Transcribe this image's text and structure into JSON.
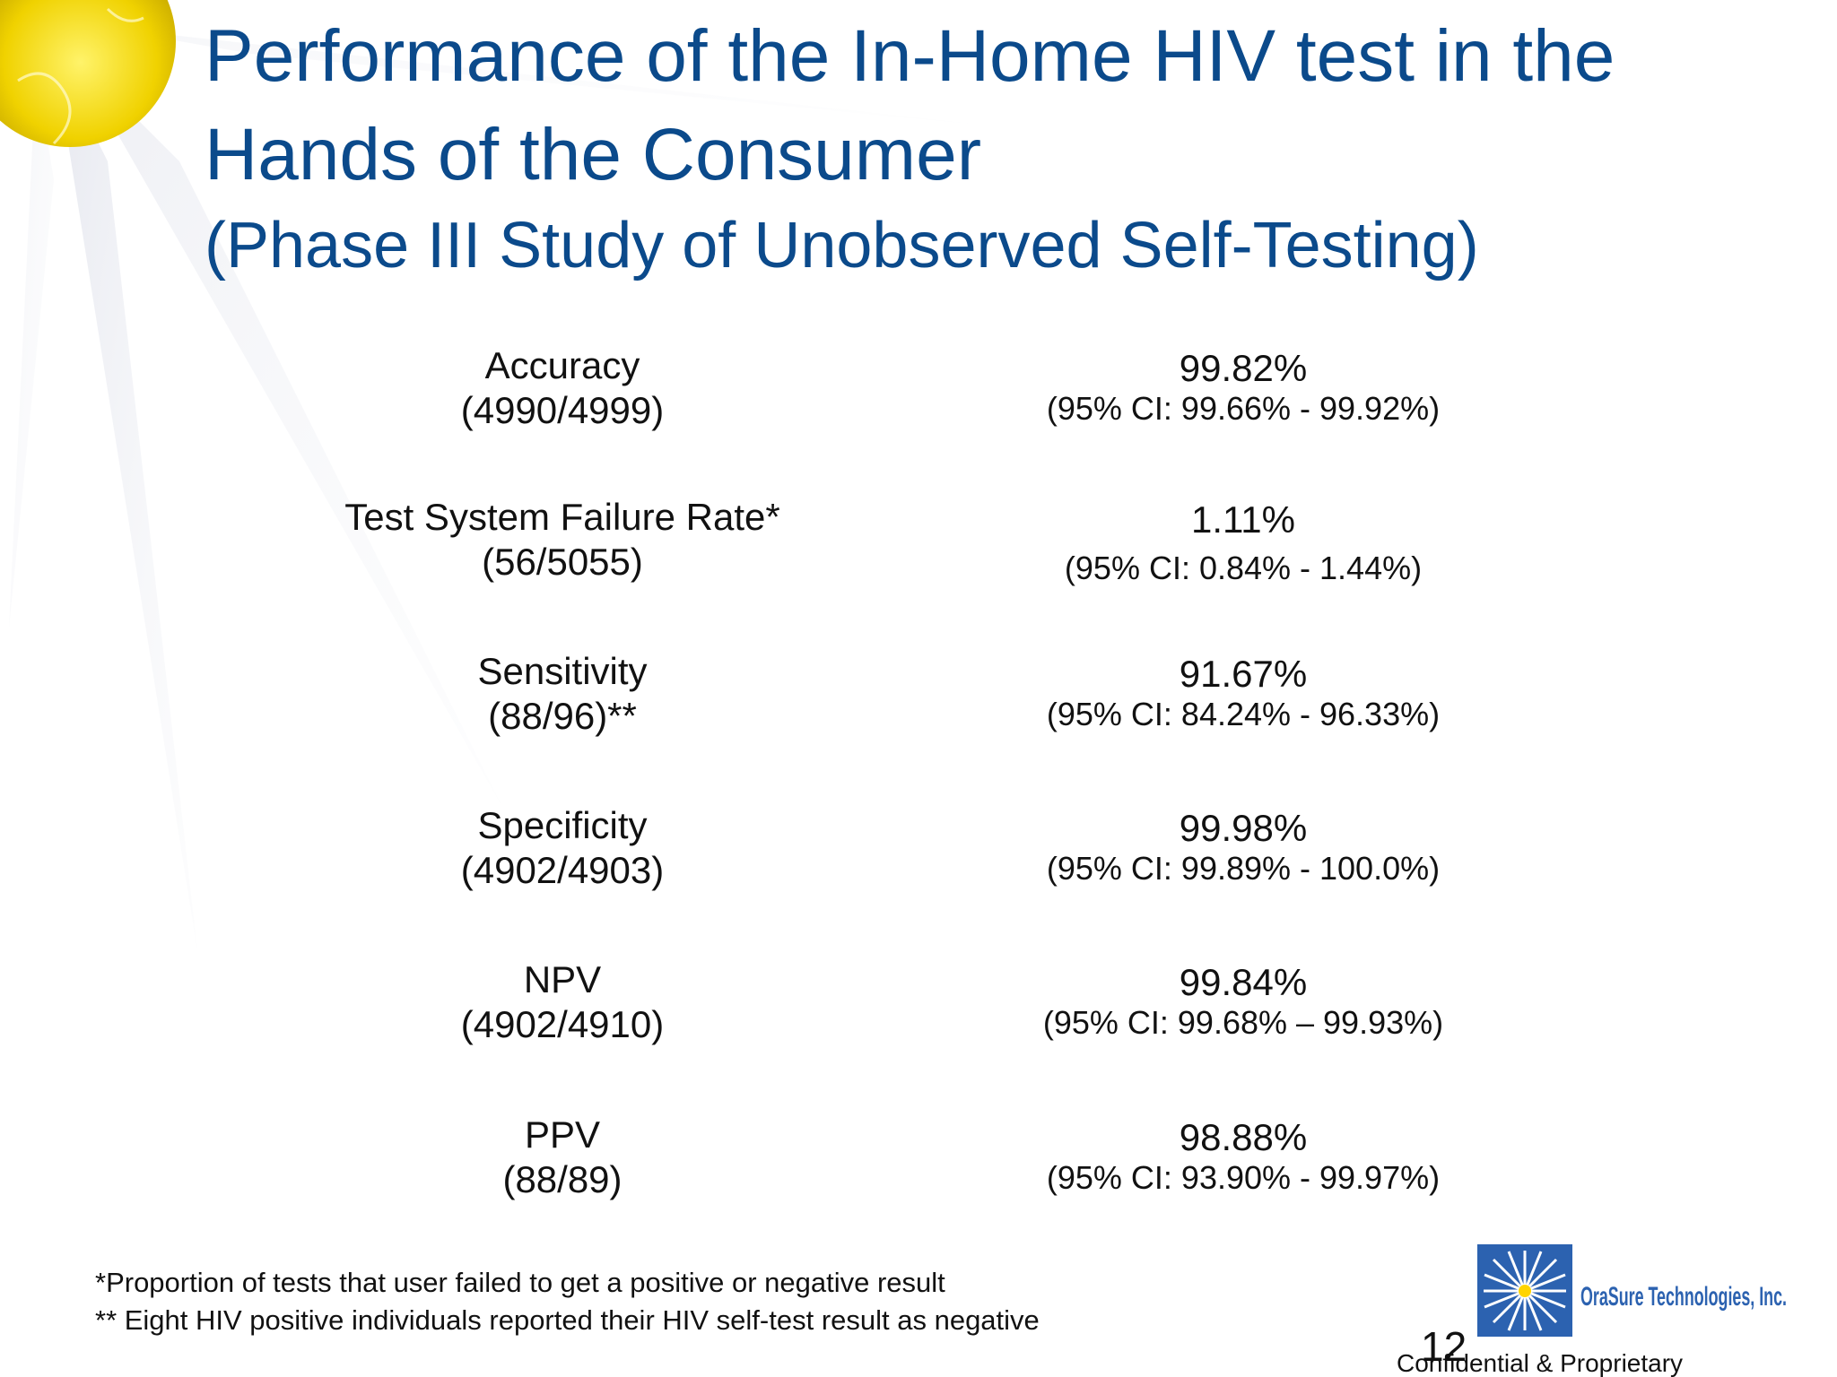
{
  "header": {
    "title_lines": [
      "Performance of the In-Home HIV test in the",
      "Hands of the Consumer"
    ],
    "subtitle": "(Phase III Study of Unobserved Self-Testing)"
  },
  "rows": [
    {
      "label": "Accuracy",
      "fraction": "(4990/4999)",
      "value": "99.82%",
      "ci": "(95% CI: 99.66% - 99.92%)"
    },
    {
      "label": "Test System Failure Rate*",
      "fraction": "(56/5055)",
      "value": "1.11%",
      "ci": "(95% CI: 0.84% - 1.44%)"
    },
    {
      "label": "Sensitivity",
      "fraction": "(88/96)**",
      "value": "91.67%",
      "ci": "(95% CI: 84.24% - 96.33%)"
    },
    {
      "label": "Specificity",
      "fraction": "(4902/4903)",
      "value": "99.98%",
      "ci": "(95% CI: 99.89% - 100.0%)"
    },
    {
      "label": "NPV",
      "fraction": "(4902/4910)",
      "value": "99.84%",
      "ci": "(95% CI: 99.68% – 99.93%)"
    },
    {
      "label": "PPV",
      "fraction": "(88/89)",
      "value": "98.88%",
      "ci": "(95% CI: 93.90% - 99.97%)"
    }
  ],
  "footnotes": [
    "*Proportion of tests that user failed to get a positive or negative result",
    "** Eight HIV positive individuals reported their HIV self-test result as negative"
  ],
  "footer": {
    "page_number": "12",
    "confidential": "Confidential & Proprietary",
    "logo_text": "OraSure Technologies, Inc."
  }
}
